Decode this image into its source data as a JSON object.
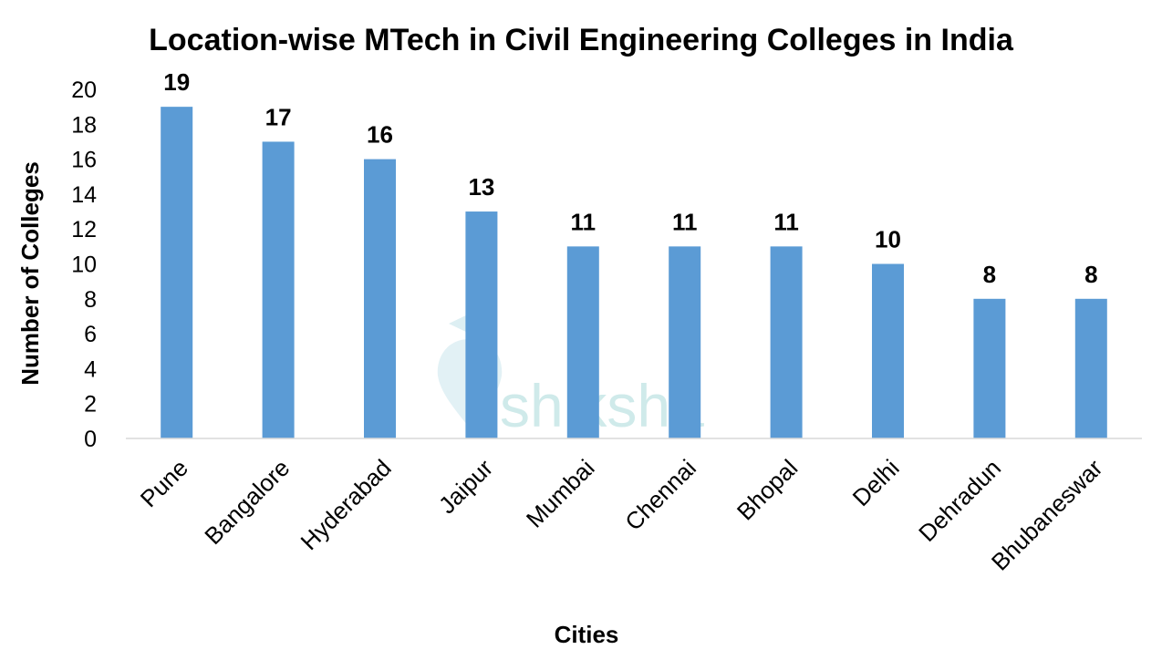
{
  "chart_data": {
    "type": "bar",
    "title": "Location-wise MTech in Civil Engineering Colleges in India",
    "xlabel": "Cities",
    "ylabel": "Number of Colleges",
    "categories": [
      "Pune",
      "Bangalore",
      "Hyderabad",
      "Jaipur",
      "Mumbai",
      "Chennai",
      "Bhopal",
      "Delhi",
      "Dehradun",
      "Bhubaneswar"
    ],
    "values": [
      19,
      17,
      16,
      13,
      11,
      11,
      11,
      10,
      8,
      8
    ],
    "ylim": [
      0,
      20
    ],
    "yticks": [
      0,
      2,
      4,
      6,
      8,
      10,
      12,
      14,
      16,
      18,
      20
    ],
    "grid": false,
    "legend": "none",
    "bar_color": "#5b9bd5",
    "data_labels": true
  },
  "watermark": {
    "text": "shiksha",
    "color": "#bfe3e3"
  }
}
